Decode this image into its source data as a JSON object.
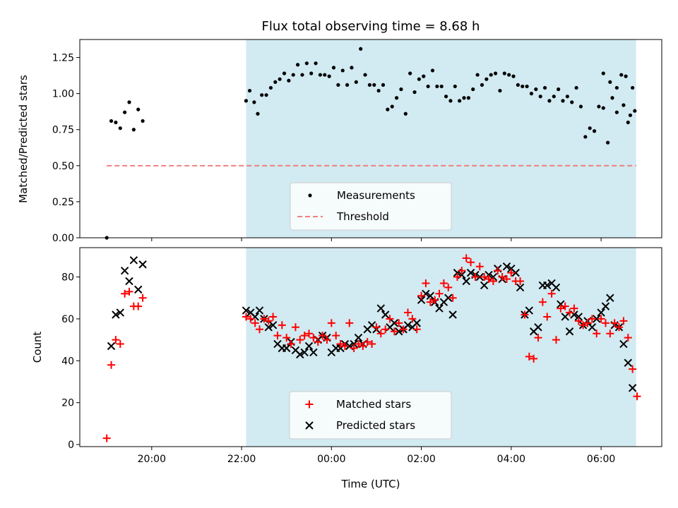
{
  "colors": {
    "shade": "#add8e6",
    "threshold": "#f08080",
    "matched": "#ff0000",
    "predicted": "#000000",
    "measurement": "#000000"
  },
  "chart_data": [
    {
      "type": "scatter",
      "title": "Flux total observing time = 8.68 h",
      "xlabel": "",
      "ylabel": "Matched/Predicted stars",
      "xlim": [
        18.4,
        31.35
      ],
      "ylim": [
        0.0,
        1.375
      ],
      "x_ticks": [
        20,
        22,
        24,
        26,
        28,
        30
      ],
      "x_tick_labels": [
        "",
        "",
        "",
        "",
        "",
        ""
      ],
      "y_ticks": [
        0.0,
        0.25,
        0.5,
        0.75,
        1.0,
        1.25
      ],
      "y_tick_labels": [
        "0.00",
        "0.25",
        "0.50",
        "0.75",
        "1.00",
        "1.25"
      ],
      "shaded_span": [
        22.1,
        30.78
      ],
      "threshold": {
        "name": "Threshold",
        "y": 0.5,
        "x_range": [
          19.0,
          30.78
        ]
      },
      "series": [
        {
          "name": "Measurements",
          "marker": "dot",
          "x": [
            19.0,
            19.1,
            19.2,
            19.3,
            19.4,
            19.5,
            19.6,
            19.7,
            19.8,
            22.1,
            22.18,
            22.28,
            22.36,
            22.45,
            22.55,
            22.65,
            22.75,
            22.85,
            22.95,
            23.05,
            23.15,
            23.25,
            23.35,
            23.45,
            23.55,
            23.65,
            23.75,
            23.85,
            23.95,
            24.05,
            24.15,
            24.25,
            24.35,
            24.45,
            24.55,
            24.65,
            24.75,
            24.85,
            24.95,
            25.05,
            25.15,
            25.25,
            25.35,
            25.45,
            25.55,
            25.65,
            25.75,
            25.85,
            25.95,
            26.05,
            26.15,
            26.25,
            26.35,
            26.45,
            26.55,
            26.65,
            26.75,
            26.85,
            26.95,
            27.05,
            27.15,
            27.25,
            27.35,
            27.45,
            27.55,
            27.65,
            27.75,
            27.85,
            27.95,
            28.05,
            28.15,
            28.25,
            28.35,
            28.45,
            28.55,
            28.65,
            28.75,
            28.85,
            28.95,
            29.05,
            29.15,
            29.25,
            29.35,
            29.45,
            29.55,
            29.65,
            29.75,
            29.85,
            29.95,
            30.05,
            30.15,
            30.25,
            30.35,
            30.45,
            30.55,
            30.65,
            30.75
          ],
          "y": [
            0.0,
            0.81,
            0.8,
            0.76,
            0.87,
            0.94,
            0.75,
            0.89,
            0.81,
            0.95,
            1.02,
            0.94,
            0.86,
            0.99,
            0.99,
            1.04,
            1.08,
            1.1,
            1.14,
            1.09,
            1.13,
            1.2,
            1.13,
            1.21,
            1.14,
            1.21,
            1.13,
            1.13,
            1.12,
            1.18,
            1.06,
            1.16,
            1.06,
            1.18,
            1.08,
            1.31,
            1.13,
            1.06,
            1.06,
            1.02,
            1.06,
            0.89,
            0.91,
            0.97,
            1.03,
            0.86,
            1.14,
            1.01,
            1.1,
            1.12,
            1.05,
            1.16,
            1.05,
            1.05,
            0.98,
            0.95,
            1.05,
            0.95,
            0.97,
            0.97,
            1.03,
            1.13,
            1.06,
            1.1,
            1.13,
            1.14,
            1.02,
            1.14,
            1.13,
            1.12,
            1.06,
            1.05,
            1.05,
            1.0,
            1.03,
            0.98,
            1.04,
            0.95,
            0.98,
            1.03,
            0.95,
            0.98,
            0.94,
            1.04,
            0.91,
            0.7,
            0.76,
            0.74,
            0.91,
            0.9,
            0.66,
            0.97,
            1.04,
            1.13,
            1.12,
            0.85,
            0.88
          ],
          "note_x_extra": [
            30.05,
            30.2,
            30.35,
            30.5,
            30.6,
            30.7
          ],
          "note_y_extra": [
            1.14,
            1.08,
            0.87,
            0.92,
            0.8,
            1.04
          ]
        }
      ],
      "legend": {
        "position": "bottom-center",
        "labels": [
          "Measurements",
          "Threshold"
        ]
      }
    },
    {
      "type": "scatter",
      "title": "",
      "xlabel": "Time (UTC)",
      "ylabel": "Count",
      "xlim": [
        18.4,
        31.35
      ],
      "ylim": [
        -1,
        94
      ],
      "x_ticks": [
        20,
        22,
        24,
        26,
        28,
        30
      ],
      "x_tick_labels": [
        "20:00",
        "22:00",
        "00:00",
        "02:00",
        "04:00",
        "06:00"
      ],
      "y_ticks": [
        0,
        20,
        40,
        60,
        80
      ],
      "y_tick_labels": [
        "0",
        "20",
        "40",
        "60",
        "80"
      ],
      "shaded_span": [
        22.1,
        30.78
      ],
      "series": [
        {
          "name": "Matched stars",
          "marker": "plus",
          "x": [
            19.0,
            19.1,
            19.2,
            19.3,
            19.4,
            19.5,
            19.6,
            19.7,
            19.8,
            22.1,
            22.2,
            22.3,
            22.4,
            22.5,
            22.6,
            22.7,
            22.8,
            22.9,
            23.0,
            23.1,
            23.2,
            23.3,
            23.4,
            23.5,
            23.6,
            23.7,
            23.8,
            23.9,
            24.0,
            24.1,
            24.2,
            24.3,
            24.4,
            24.5,
            24.6,
            24.7,
            24.8,
            24.9,
            25.0,
            25.1,
            25.2,
            25.3,
            25.4,
            25.5,
            25.6,
            25.7,
            25.8,
            25.9,
            26.0,
            26.1,
            26.2,
            26.3,
            26.4,
            26.5,
            26.6,
            26.7,
            26.8,
            26.9,
            27.0,
            27.1,
            27.2,
            27.3,
            27.4,
            27.5,
            27.6,
            27.7,
            27.8,
            27.9,
            28.0,
            28.1,
            28.2,
            28.3,
            28.4,
            28.5,
            28.6,
            28.7,
            28.8,
            28.9,
            29.0,
            29.1,
            29.2,
            29.3,
            29.4,
            29.5,
            29.6,
            29.7,
            29.8,
            29.9,
            30.0,
            30.1,
            30.2,
            30.3,
            30.4,
            30.5,
            30.6,
            30.7,
            30.8
          ],
          "y": [
            3,
            38,
            50,
            48,
            72,
            73,
            66,
            66,
            70,
            61,
            60,
            58,
            55,
            60,
            59,
            61,
            52,
            57,
            51,
            48,
            56,
            50,
            52,
            53,
            51,
            49,
            52,
            50,
            58,
            52,
            48,
            47,
            58,
            46,
            48,
            47,
            49,
            48,
            56,
            53,
            55,
            60,
            54,
            58,
            55,
            63,
            60,
            55,
            71,
            77,
            68,
            69,
            72,
            77,
            75,
            70,
            80,
            83,
            89,
            87,
            80,
            85,
            80,
            79,
            78,
            83,
            80,
            79,
            82,
            78,
            78,
            62,
            42,
            41,
            51,
            68,
            61,
            72,
            50,
            65,
            66,
            63,
            65,
            59,
            57,
            58,
            60,
            53,
            60,
            58,
            53,
            58,
            56,
            59,
            51,
            36,
            23
          ]
        },
        {
          "name": "Predicted stars",
          "marker": "x",
          "x": [
            19.0,
            19.1,
            19.2,
            19.3,
            19.4,
            19.5,
            19.6,
            19.7,
            19.8,
            22.1,
            22.2,
            22.3,
            22.4,
            22.5,
            22.6,
            22.7,
            22.8,
            22.9,
            23.0,
            23.1,
            23.2,
            23.3,
            23.4,
            23.5,
            23.6,
            23.7,
            23.8,
            23.9,
            24.0,
            24.1,
            24.2,
            24.3,
            24.4,
            24.5,
            24.6,
            24.7,
            24.8,
            24.9,
            25.0,
            25.1,
            25.2,
            25.3,
            25.4,
            25.5,
            25.6,
            25.7,
            25.8,
            25.9,
            26.0,
            26.1,
            26.2,
            26.3,
            26.4,
            26.5,
            26.6,
            26.7,
            26.8,
            26.9,
            27.0,
            27.1,
            27.2,
            27.3,
            27.4,
            27.5,
            27.6,
            27.7,
            27.8,
            27.9,
            28.0,
            28.1,
            28.2,
            28.3,
            28.4,
            28.5,
            28.6,
            28.7,
            28.8,
            28.9,
            29.0,
            29.1,
            29.2,
            29.3,
            29.4,
            29.5,
            29.6,
            29.7,
            29.8,
            29.9,
            30.0,
            30.1,
            30.2,
            30.3,
            30.4,
            30.5,
            30.6,
            30.7,
            30.8
          ],
          "y": [
            null,
            47,
            62,
            63,
            83,
            78,
            88,
            74,
            86,
            64,
            63,
            61,
            64,
            60,
            56,
            57,
            48,
            46,
            46,
            49,
            45,
            43,
            44,
            47,
            44,
            50,
            52,
            51,
            44,
            46,
            46,
            48,
            47,
            48,
            51,
            48,
            55,
            57,
            55,
            65,
            62,
            56,
            58,
            54,
            55,
            57,
            56,
            58,
            69,
            72,
            71,
            68,
            65,
            68,
            70,
            62,
            82,
            81,
            78,
            82,
            81,
            80,
            76,
            81,
            80,
            84,
            79,
            85,
            84,
            82,
            75,
            62,
            64,
            54,
            56,
            76,
            76,
            77,
            75,
            67,
            61,
            54,
            62,
            61,
            57,
            59,
            56,
            60,
            63,
            66,
            70,
            57,
            56,
            48,
            39,
            27,
            null
          ]
        }
      ],
      "legend": {
        "position": "bottom-center",
        "labels": [
          "Matched stars",
          "Predicted stars"
        ]
      }
    }
  ]
}
